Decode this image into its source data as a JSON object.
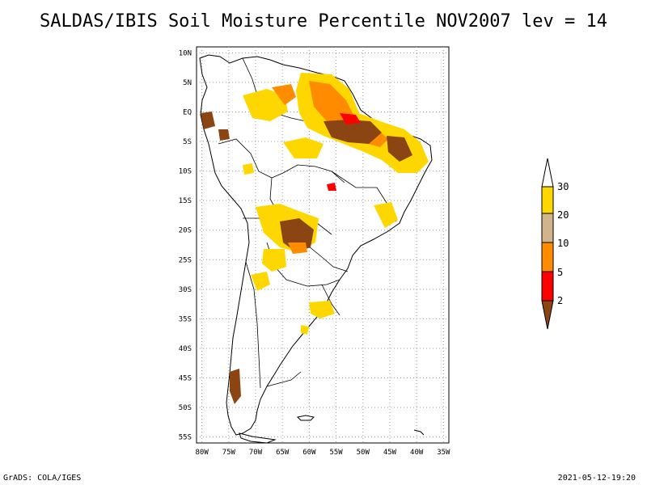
{
  "title": "SALDAS/IBIS Soil Moisture Percentile NOV2007 lev = 14",
  "footer": {
    "left": "GrADS: COLA/IGES",
    "right": "2021-05-12-19:20"
  },
  "map": {
    "lat_labels": [
      "10N",
      "5N",
      "EQ",
      "5S",
      "10S",
      "15S",
      "20S",
      "25S",
      "30S",
      "35S",
      "40S",
      "45S",
      "50S",
      "55S"
    ],
    "lon_labels": [
      "80W",
      "75W",
      "70W",
      "65W",
      "60W",
      "55W",
      "50W",
      "45W",
      "40W",
      "35W"
    ],
    "lat_range": [
      -56,
      11
    ],
    "lon_range": [
      -81,
      -34
    ]
  },
  "colorbar": {
    "levels": [
      "2",
      "5",
      "10",
      "20",
      "30"
    ],
    "colors": [
      "#8b4513",
      "#ff0000",
      "#ff8c00",
      "#d2b48c",
      "#ffd700"
    ],
    "top_color": "#ffffff"
  },
  "legend_meaning": "percentile"
}
